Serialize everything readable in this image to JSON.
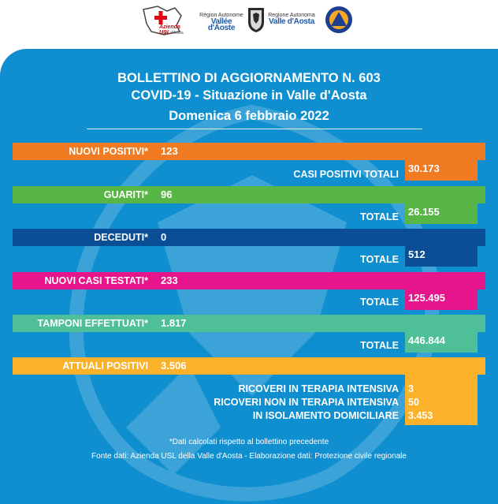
{
  "header": {
    "usl_logo_text": "Azienda USL",
    "usl_logo_sub": "Valle d'Aosta",
    "rva1_line1": "Région Autonome",
    "rva1_line2": "Vallée d'Aoste",
    "rva2_line1": "Regione Autonoma",
    "rva2_line2": "Valle d'Aosta"
  },
  "title": {
    "line1": "BOLLETTINO DI AGGIORNAMENTO N. 603",
    "line2": "COVID-19 - Situazione in Valle d'Aosta",
    "line3": "Domenica 6 febbraio 2022"
  },
  "rows": [
    {
      "label": "NUOVI POSITIVI*",
      "value": "123",
      "total_label": "CASI POSITIVI TOTALI",
      "total_value": "30.173",
      "color": "#f07b22"
    },
    {
      "label": "GUARITI*",
      "value": "96",
      "total_label": "TOTALE",
      "total_value": "26.155",
      "color": "#57b646"
    },
    {
      "label": "DECEDUTI*",
      "value": "0",
      "total_label": "TOTALE",
      "total_value": "512",
      "color": "#0a4f95"
    },
    {
      "label": "NUOVI CASI TESTATI*",
      "value": "233",
      "total_label": "TOTALE",
      "total_value": "125.495",
      "color": "#e7158b"
    },
    {
      "label": "TAMPONI EFFETTUATI*",
      "value": "1.817",
      "total_label": "TOTALE",
      "total_value": "446.844",
      "color": "#4fbf98"
    },
    {
      "label": "ATTUALI POSITIVI",
      "value": "3.506",
      "color": "#fbb12a"
    }
  ],
  "attuali": [
    {
      "label": "RICOVERI IN TERAPIA INTENSIVA",
      "value": "3"
    },
    {
      "label": "RICOVERI NON IN TERAPIA INTENSIVA",
      "value": "50"
    },
    {
      "label": "IN ISOLAMENTO DOMICILIARE",
      "value": "3.453"
    }
  ],
  "footer": {
    "note": "*Dati calcolati rispetto al bollettino precedente",
    "source": "Fonte dati: Azienda USL della Valle d'Aosta - Elaborazione dati: Protezione civile regionale"
  }
}
